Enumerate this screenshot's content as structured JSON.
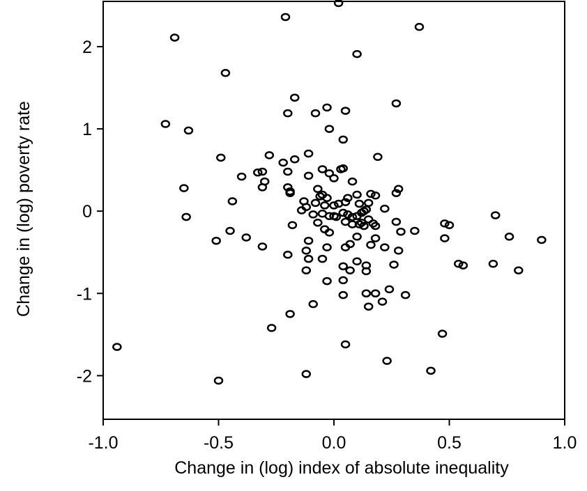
{
  "chart_data": {
    "type": "scatter",
    "x_label": "Change in (log) index of absolute inequality",
    "y_label": "Change in (log) poverty rate",
    "xlim": [
      -1.0,
      1.0
    ],
    "ylim": [
      -2.53,
      2.55
    ],
    "xticks": [
      {
        "value": -1.0,
        "label": "-1.0"
      },
      {
        "value": -0.5,
        "label": "-0.5"
      },
      {
        "value": 0,
        "label": "0.0"
      },
      {
        "value": 0.5,
        "label": "0.5"
      },
      {
        "value": 1.0,
        "label": "1.0"
      }
    ],
    "yticks": [
      -2,
      -1,
      0,
      1,
      2
    ],
    "color": "#000000",
    "x": [
      0.02,
      -0.21,
      0.37,
      -0.69,
      0.1,
      -0.47,
      -0.73,
      -0.63,
      -0.17,
      -0.2,
      -0.08,
      -0.03,
      0.05,
      0.27,
      -0.02,
      0.04,
      -0.49,
      -0.28,
      -0.17,
      -0.22,
      -0.11,
      0.19,
      -0.33,
      -0.31,
      -0.4,
      -0.3,
      -0.2,
      -0.31,
      -0.05,
      0.03,
      0.04,
      -0.11,
      -0.02,
      0.0,
      -0.65,
      -0.2,
      -0.19,
      -0.19,
      -0.07,
      -0.06,
      -0.05,
      -0.03,
      0.06,
      0.1,
      0.08,
      0.16,
      0.18,
      0.28,
      0.27,
      -0.44,
      -0.13,
      -0.08,
      -0.04,
      0.0,
      0.02,
      0.05,
      0.11,
      0.15,
      0.22,
      -0.64,
      -0.14,
      -0.12,
      -0.05,
      -0.02,
      0.0,
      0.01,
      0.04,
      0.06,
      0.08,
      0.1,
      0.12,
      0.13,
      0.14,
      0.15,
      0.12,
      0.11,
      0.13,
      0.17,
      0.18,
      -0.18,
      -0.09,
      0.05,
      0.08,
      -0.07,
      -0.04,
      -0.02,
      -0.45,
      -0.38,
      -0.51,
      -0.31,
      0.05,
      0.07,
      0.1,
      0.16,
      0.18,
      0.22,
      0.27,
      0.28,
      0.29,
      0.35,
      0.48,
      0.48,
      0.5,
      0.7,
      0.76,
      0.9,
      -0.03,
      -0.11,
      -0.12,
      -0.2,
      -0.05,
      -0.11,
      -0.12,
      0.04,
      0.07,
      0.1,
      0.14,
      0.14,
      0.26,
      0.54,
      0.56,
      0.69,
      0.8,
      -0.03,
      0.04,
      0.04,
      0.14,
      0.18,
      0.15,
      0.21,
      0.24,
      0.31,
      -0.09,
      -0.19,
      -0.27,
      0.47,
      0.05,
      -0.94,
      0.23,
      0.42,
      -0.12,
      -0.5
    ],
    "y": [
      2.53,
      2.36,
      2.24,
      2.11,
      1.91,
      1.68,
      1.06,
      0.98,
      1.38,
      1.19,
      1.19,
      1.26,
      1.22,
      1.31,
      1.0,
      0.87,
      0.65,
      0.68,
      0.63,
      0.59,
      0.7,
      0.66,
      0.47,
      0.48,
      0.42,
      0.36,
      0.48,
      0.29,
      0.51,
      0.51,
      0.52,
      0.43,
      0.46,
      0.4,
      0.28,
      0.29,
      0.24,
      0.22,
      0.27,
      0.18,
      0.2,
      0.16,
      0.16,
      0.2,
      0.36,
      0.21,
      0.19,
      0.27,
      0.22,
      0.12,
      0.12,
      0.1,
      0.07,
      0.07,
      0.09,
      0.11,
      0.09,
      0.1,
      0.03,
      -0.07,
      0.01,
      0.05,
      -0.03,
      -0.06,
      -0.06,
      -0.07,
      -0.02,
      -0.04,
      -0.07,
      -0.06,
      -0.02,
      0.0,
      0.02,
      -0.1,
      -0.14,
      -0.16,
      -0.18,
      -0.15,
      -0.18,
      -0.17,
      -0.04,
      -0.13,
      -0.16,
      -0.14,
      -0.22,
      -0.26,
      -0.24,
      -0.32,
      -0.36,
      -0.43,
      -0.44,
      -0.4,
      -0.31,
      -0.41,
      -0.33,
      -0.44,
      -0.13,
      -0.48,
      -0.25,
      -0.24,
      -0.33,
      -0.15,
      -0.17,
      -0.05,
      -0.31,
      -0.35,
      -0.44,
      -0.36,
      -0.48,
      -0.53,
      -0.58,
      -0.58,
      -0.72,
      -0.67,
      -0.72,
      -0.61,
      -0.66,
      -0.73,
      -0.65,
      -0.64,
      -0.66,
      -0.64,
      -0.72,
      -0.85,
      -0.84,
      -1.02,
      -1.0,
      -1.0,
      -1.16,
      -1.1,
      -0.95,
      -1.02,
      -1.13,
      -1.25,
      -1.42,
      -1.49,
      -1.62,
      -1.65,
      -1.82,
      -1.94,
      -1.98,
      -2.06
    ]
  }
}
